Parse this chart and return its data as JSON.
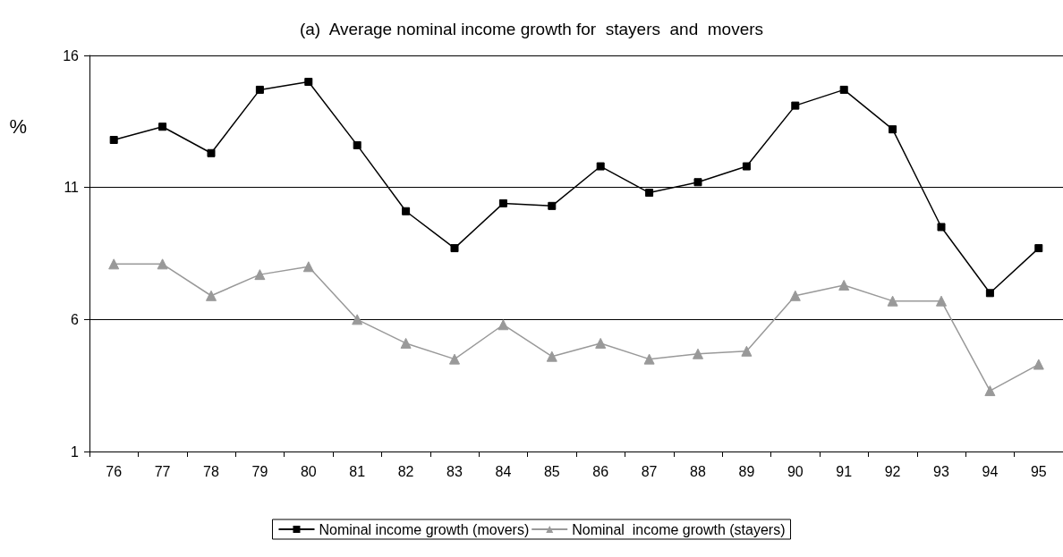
{
  "chart_data": {
    "type": "line",
    "title": "(a)  Average nominal income growth for  stayers  and  movers",
    "ylabel": "%",
    "categories": [
      "76",
      "77",
      "78",
      "79",
      "80",
      "81",
      "82",
      "83",
      "84",
      "85",
      "86",
      "87",
      "88",
      "89",
      "90",
      "91",
      "92",
      "93",
      "94",
      "95"
    ],
    "series": [
      {
        "name": "Nominal income growth (movers)",
        "color": "#000000",
        "marker": "square",
        "values": [
          12.8,
          13.3,
          12.3,
          14.7,
          15.0,
          12.6,
          10.1,
          8.7,
          10.4,
          10.3,
          11.8,
          10.8,
          11.2,
          11.8,
          14.1,
          14.7,
          13.2,
          9.5,
          7.0,
          8.7
        ]
      },
      {
        "name": "Nominal  income growth (stayers)",
        "color": "#999999",
        "marker": "triangle",
        "values": [
          8.1,
          8.1,
          6.9,
          7.7,
          8.0,
          6.0,
          5.1,
          4.5,
          5.8,
          4.6,
          5.1,
          4.5,
          4.7,
          4.8,
          6.9,
          7.3,
          6.7,
          6.7,
          3.3,
          4.3
        ]
      }
    ],
    "ylim": [
      1,
      16
    ],
    "yticks": [
      1,
      6,
      11,
      16
    ],
    "grid": "y",
    "legend": "bottom"
  }
}
